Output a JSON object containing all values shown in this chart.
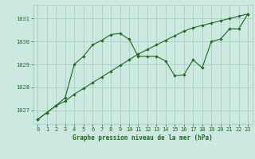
{
  "title": "Graphe pression niveau de la mer (hPa)",
  "background_color": "#cce8e0",
  "grid_color": "#99ccbb",
  "line_color": "#1a6b1a",
  "xlim": [
    -0.5,
    23.5
  ],
  "ylim": [
    1026.4,
    1031.6
  ],
  "yticks": [
    1027,
    1028,
    1029,
    1030,
    1031
  ],
  "xticks": [
    0,
    1,
    2,
    3,
    4,
    5,
    6,
    7,
    8,
    9,
    10,
    11,
    12,
    13,
    14,
    15,
    16,
    17,
    18,
    19,
    20,
    21,
    22,
    23
  ],
  "series1_x": [
    0,
    1,
    2,
    3,
    4,
    5,
    6,
    7,
    8,
    9,
    10,
    11,
    12,
    13,
    14,
    15,
    16,
    17,
    18,
    19,
    20,
    21,
    22,
    23
  ],
  "series1_y": [
    1026.6,
    1026.9,
    1027.2,
    1027.4,
    1027.7,
    1027.95,
    1028.2,
    1028.45,
    1028.7,
    1028.95,
    1029.2,
    1029.45,
    1029.65,
    1029.85,
    1030.05,
    1030.25,
    1030.45,
    1030.6,
    1030.7,
    1030.8,
    1030.9,
    1031.0,
    1031.1,
    1031.2
  ],
  "series2_x": [
    0,
    1,
    2,
    3,
    4,
    5,
    6,
    7,
    8,
    9,
    10,
    11,
    12,
    13,
    14,
    15,
    16,
    17,
    18,
    19,
    20,
    21,
    22,
    23
  ],
  "series2_y": [
    1026.6,
    1026.9,
    1027.2,
    1027.55,
    1029.0,
    1029.35,
    1029.85,
    1030.05,
    1030.3,
    1030.35,
    1030.1,
    1029.35,
    1029.35,
    1029.35,
    1029.15,
    1028.5,
    1028.55,
    1029.2,
    1028.85,
    1030.0,
    1030.1,
    1030.55,
    1030.55,
    1031.2
  ],
  "title_fontsize": 5.5,
  "tick_fontsize": 5.0,
  "linewidth": 0.8,
  "markersize": 1.8
}
